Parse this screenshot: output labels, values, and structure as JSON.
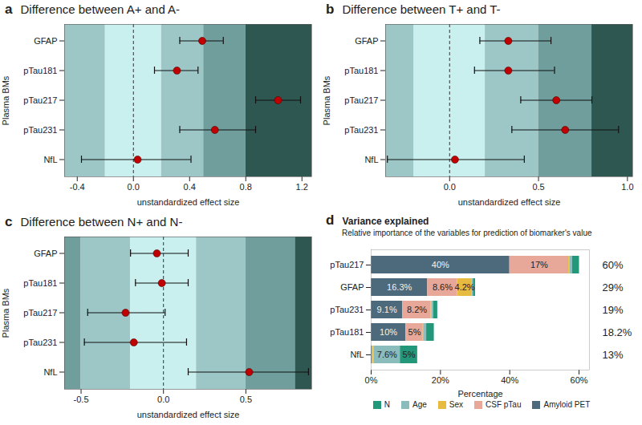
{
  "chart_data": [
    {
      "type": "forest",
      "panel": "a",
      "title": "Difference between A+ and A-",
      "x_label": "unstandardized effect size",
      "y_label": "Plasma BMs",
      "categories": [
        "GFAP",
        "pTau181",
        "pTau217",
        "pTau231",
        "NfL"
      ],
      "values": [
        0.49,
        0.31,
        1.03,
        0.58,
        0.03
      ],
      "ci_lower": [
        0.33,
        0.15,
        0.87,
        0.33,
        -0.37
      ],
      "ci_upper": [
        0.64,
        0.46,
        1.19,
        0.87,
        0.41
      ],
      "color": "#c00000",
      "reference_line": 0,
      "xlim": [
        -0.49,
        1.27
      ],
      "xticks": [
        -0.4,
        {
          "value": 0,
          "label": "0.0"
        },
        0.4,
        0.8,
        1.2
      ],
      "bands": [
        {
          "from": -0.49,
          "to": -0.2,
          "color": "#9dc7c6"
        },
        {
          "from": -0.2,
          "to": 0.2,
          "color": "#c9efef"
        },
        {
          "from": 0.2,
          "to": 0.5,
          "color": "#9dc7c6"
        },
        {
          "from": 0.5,
          "to": 0.8,
          "color": "#6f9e9c"
        },
        {
          "from": 0.8,
          "to": 1.27,
          "color": "#2e5752"
        }
      ]
    },
    {
      "type": "forest",
      "panel": "b",
      "title": "Difference between T+ and T-",
      "x_label": "unstandardized effect size",
      "y_label": "Plasma BMs",
      "categories": [
        "GFAP",
        "pTau181",
        "pTau217",
        "pTau231",
        "NfL"
      ],
      "values": [
        0.33,
        0.33,
        0.6,
        0.65,
        0.03
      ],
      "ci_lower": [
        0.17,
        0.14,
        0.4,
        0.35,
        -0.35
      ],
      "ci_upper": [
        0.57,
        0.59,
        0.8,
        0.95,
        0.42
      ],
      "color": "#c00000",
      "reference_line": 0,
      "xlim": [
        -0.36,
        1.03
      ],
      "xticks": [
        {
          "value": 0,
          "label": "0.0"
        },
        0.5,
        {
          "value": 1,
          "label": "1.0"
        }
      ],
      "bands": [
        {
          "from": -0.36,
          "to": -0.2,
          "color": "#9dc7c6"
        },
        {
          "from": -0.2,
          "to": 0.2,
          "color": "#c9efef"
        },
        {
          "from": 0.2,
          "to": 0.5,
          "color": "#9dc7c6"
        },
        {
          "from": 0.5,
          "to": 0.8,
          "color": "#6f9e9c"
        },
        {
          "from": 0.8,
          "to": 1.03,
          "color": "#2e5752"
        }
      ]
    },
    {
      "type": "forest",
      "panel": "c",
      "title": "Difference between N+ and N-",
      "x_label": "unstandardized effect size",
      "y_label": "Plasma BMs",
      "categories": [
        "GFAP",
        "pTau181",
        "pTau217",
        "pTau231",
        "NfL"
      ],
      "values": [
        -0.04,
        -0.01,
        -0.23,
        -0.18,
        0.52
      ],
      "ci_lower": [
        -0.2,
        -0.17,
        -0.46,
        -0.48,
        0.15
      ],
      "ci_upper": [
        0.15,
        0.15,
        0.01,
        0.14,
        0.88
      ],
      "color": "#c00000",
      "reference_line": 0,
      "xlim": [
        -0.6,
        0.9
      ],
      "xticks": [
        -0.5,
        {
          "value": 0,
          "label": "0.0"
        },
        0.5
      ],
      "bands": [
        {
          "from": -0.6,
          "to": -0.5,
          "color": "#6f9e9c"
        },
        {
          "from": -0.5,
          "to": -0.2,
          "color": "#9dc7c6"
        },
        {
          "from": -0.2,
          "to": 0.2,
          "color": "#c9efef"
        },
        {
          "from": 0.2,
          "to": 0.5,
          "color": "#9dc7c6"
        },
        {
          "from": 0.5,
          "to": 0.8,
          "color": "#6f9e9c"
        },
        {
          "from": 0.8,
          "to": 0.9,
          "color": "#2e5752"
        }
      ]
    },
    {
      "type": "bar",
      "panel": "d",
      "title": "Variance explained",
      "subtitle": "Relative importance of the variables for prediction of biomarker's value",
      "x_label": "Percentage",
      "orientation": "horizontal",
      "stacked": true,
      "data_labels": true,
      "categories": [
        "pTau217",
        "GFAP",
        "pTau231",
        "pTau181",
        "NfL"
      ],
      "totals": [
        "60%",
        "29%",
        "19%",
        "18.2%",
        "13%"
      ],
      "xlim": [
        0,
        63
      ],
      "xticks": [
        {
          "value": 0,
          "label": "0%"
        },
        {
          "value": 20,
          "label": "20%"
        },
        {
          "value": 40,
          "label": "40%"
        },
        {
          "value": 60,
          "label": "60%"
        }
      ],
      "series": [
        {
          "name": "Amyloid PET",
          "color": "#4d6a7d",
          "values": [
            40,
            16.3,
            9.1,
            10,
            0.3
          ],
          "value_labels": [
            "40%",
            "16.3%",
            "9.1%",
            "10%",
            null
          ]
        },
        {
          "name": "CSF pTau",
          "color": "#e8a899",
          "values": [
            17,
            8.6,
            8.2,
            5,
            0.2
          ],
          "value_labels": [
            "17%",
            "8.6%",
            "8.2%",
            "5%",
            null
          ]
        },
        {
          "name": "Sex",
          "color": "#e6bb3f",
          "values": [
            0.3,
            4.2,
            0.2,
            0.3,
            0.3
          ],
          "value_labels": [
            null,
            "4.2%",
            null,
            null,
            null
          ]
        },
        {
          "name": "Age",
          "color": "#8bbcbc",
          "values": [
            0.8,
            0.4,
            0.5,
            0.7,
            7.6
          ],
          "value_labels": [
            null,
            null,
            null,
            null,
            "7.6%"
          ]
        },
        {
          "name": "N",
          "color": "#23977a",
          "values": [
            2,
            0.6,
            1.2,
            2.2,
            5
          ],
          "value_labels": [
            null,
            null,
            null,
            null,
            "5%"
          ]
        }
      ]
    }
  ]
}
